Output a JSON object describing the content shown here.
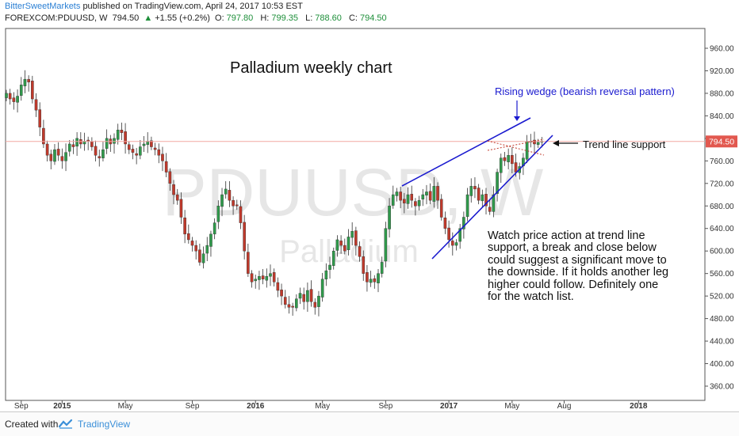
{
  "header": {
    "author": "BitterSweetMarkets",
    "published": "published on TradingView.com, April 24, 2017 10:53 EST",
    "symbol": "FOREXCOM:PDUUSD, W",
    "last": "794.50",
    "change": "+1.55 (+0.2%)",
    "o_label": "O:",
    "o": "797.80",
    "h_label": "H:",
    "h": "799.35",
    "l_label": "L:",
    "l": "788.60",
    "c_label": "C:",
    "c": "794.50"
  },
  "colors": {
    "up": "#2f9a4b",
    "down": "#c0392b",
    "annotation_blue": "#1a1acf",
    "price_tag": "#e2584f",
    "price_line": "#f2a8a2"
  },
  "chart_data": {
    "type": "candlestick",
    "title": "Palladium weekly chart",
    "watermark": {
      "symbol": "PDUUSD, W",
      "name": "Palladium"
    },
    "ylim": [
      335,
      990
    ],
    "y_ticks": [
      "960.00",
      "920.00",
      "880.00",
      "840.00",
      "800.00",
      "760.00",
      "720.00",
      "680.00",
      "640.00",
      "600.00",
      "560.00",
      "520.00",
      "480.00",
      "440.00",
      "400.00",
      "360.00"
    ],
    "x_ticks": [
      {
        "label": "Sep",
        "w": 4,
        "bold": false
      },
      {
        "label": "2015",
        "w": 15,
        "bold": true
      },
      {
        "label": "May",
        "w": 32,
        "bold": false
      },
      {
        "label": "Sep",
        "w": 50,
        "bold": false
      },
      {
        "label": "2016",
        "w": 67,
        "bold": true
      },
      {
        "label": "May",
        "w": 85,
        "bold": false
      },
      {
        "label": "Sep",
        "w": 102,
        "bold": false
      },
      {
        "label": "2017",
        "w": 119,
        "bold": true
      },
      {
        "label": "May",
        "w": 136,
        "bold": false
      },
      {
        "label": "Aug",
        "w": 150,
        "bold": false
      },
      {
        "label": "2018",
        "w": 170,
        "bold": true
      }
    ],
    "last_price": "794.50",
    "closes": [
      880,
      870,
      865,
      875,
      895,
      905,
      900,
      870,
      850,
      820,
      790,
      770,
      760,
      780,
      770,
      760,
      775,
      790,
      785,
      800,
      790,
      795,
      795,
      785,
      770,
      765,
      780,
      800,
      790,
      800,
      815,
      810,
      790,
      780,
      775,
      770,
      785,
      790,
      795,
      785,
      780,
      770,
      760,
      740,
      720,
      700,
      690,
      660,
      630,
      620,
      610,
      600,
      580,
      595,
      610,
      630,
      650,
      680,
      700,
      710,
      690,
      680,
      680,
      650,
      600,
      560,
      545,
      550,
      555,
      550,
      555,
      560,
      545,
      530,
      520,
      505,
      500,
      500,
      515,
      525,
      510,
      530,
      510,
      500,
      520,
      550,
      565,
      575,
      600,
      620,
      610,
      600,
      625,
      635,
      610,
      590,
      560,
      545,
      550,
      545,
      560,
      580,
      640,
      680,
      700,
      705,
      690,
      685,
      700,
      690,
      680,
      690,
      700,
      705,
      690,
      715,
      690,
      660,
      640,
      620,
      610,
      615,
      640,
      660,
      700,
      715,
      710,
      690,
      700,
      680,
      670,
      700,
      740,
      765,
      760,
      770,
      755,
      740,
      750,
      765,
      795,
      795,
      790,
      792.95,
      794.5
    ],
    "watch_text": "Watch price action at trend line support, a break and close below could suggest a significant move to the downside. If it holds another leg higher could follow. Definitely one for the watch list."
  },
  "annotations": {
    "wedge_label": "Rising wedge (bearish reversal pattern)",
    "support_label": "Trend line support"
  },
  "footer": {
    "created_with": "Created with",
    "brand": "TradingView"
  }
}
